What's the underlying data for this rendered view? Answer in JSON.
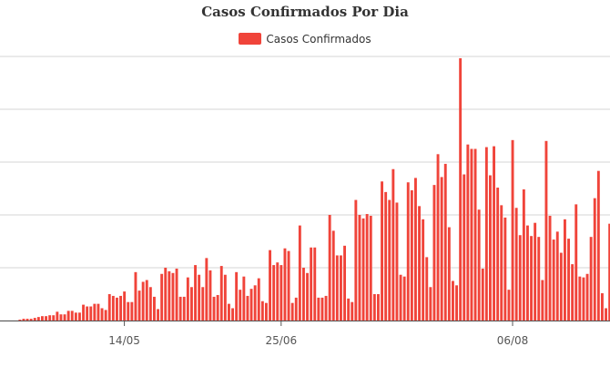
{
  "chart_data": {
    "type": "bar",
    "title": "Casos Confirmados Por Dia",
    "legend": {
      "position": "top",
      "label": "Casos Confirmados"
    },
    "series": [
      {
        "name": "Casos Confirmados",
        "color": "#f0443a"
      }
    ],
    "x_ticks": [
      "14/05",
      "25/06",
      "06/08"
    ],
    "y_tick_labels_visible": false,
    "grid": true,
    "ylim": [
      0,
      300
    ],
    "values": [
      0,
      0,
      0,
      0,
      1,
      2,
      2,
      2,
      3,
      4,
      5,
      5,
      6,
      6,
      10,
      7,
      7,
      11,
      11,
      9,
      9,
      18,
      16,
      16,
      19,
      19,
      14,
      12,
      30,
      28,
      26,
      28,
      33,
      21,
      21,
      55,
      34,
      44,
      46,
      38,
      27,
      13,
      53,
      60,
      56,
      54,
      59,
      27,
      27,
      49,
      38,
      63,
      52,
      38,
      71,
      57,
      27,
      29,
      62,
      52,
      19,
      14,
      55,
      35,
      50,
      28,
      36,
      40,
      48,
      22,
      20,
      80,
      63,
      66,
      63,
      82,
      79,
      20,
      26,
      108,
      60,
      54,
      83,
      83,
      26,
      26,
      28,
      120,
      102,
      74,
      74,
      85,
      25,
      21,
      137,
      120,
      116,
      121,
      119,
      30,
      30,
      158,
      146,
      137,
      172,
      134,
      52,
      50,
      157,
      148,
      162,
      130,
      115,
      72,
      38,
      154,
      189,
      163,
      178,
      106,
      45,
      40,
      298,
      166,
      200,
      195,
      195,
      126,
      59,
      197,
      165,
      198,
      151,
      131,
      117,
      35,
      205,
      128,
      97,
      149,
      108,
      96,
      111,
      95,
      46,
      204,
      119,
      92,
      101,
      77,
      115,
      93,
      64,
      132,
      50,
      49,
      53,
      95,
      139,
      170,
      31,
      14,
      110
    ]
  }
}
